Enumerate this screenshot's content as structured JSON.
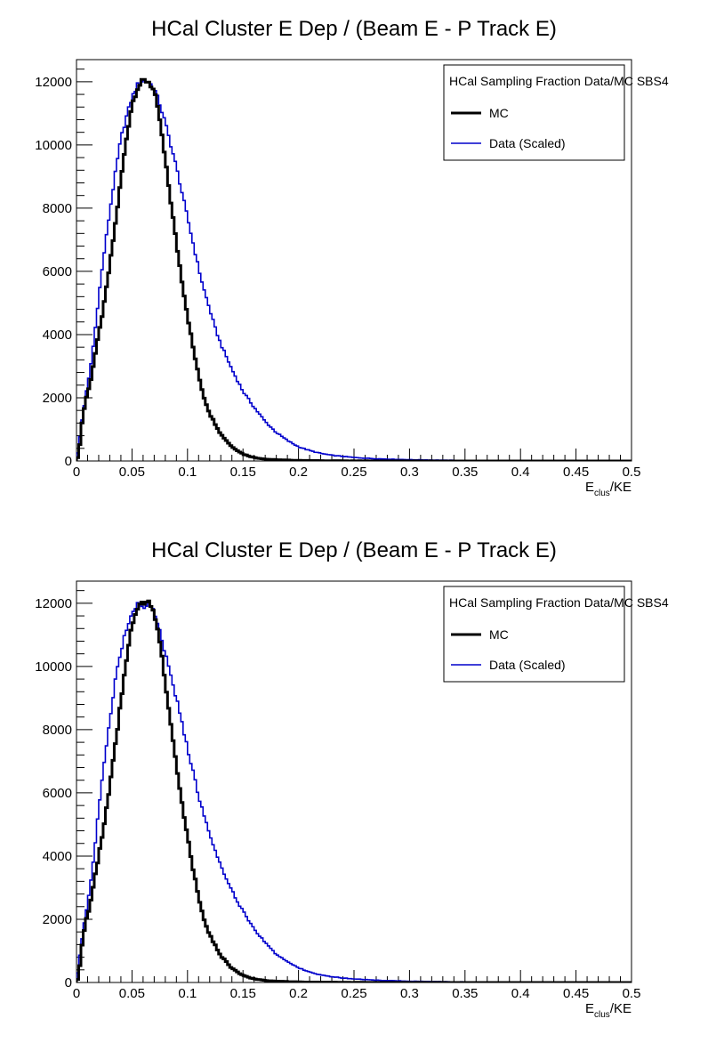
{
  "chart_data": [
    {
      "type": "line",
      "title": "HCal Cluster E Dep / (Beam E - P Track E)",
      "xlabel_main": "E",
      "xlabel_sub": "clus",
      "xlabel_tail": "/KE",
      "ylabel": "",
      "xlim": [
        0,
        0.5
      ],
      "ylim": [
        0,
        12700
      ],
      "x_ticks": [
        "0",
        "0.05",
        "0.1",
        "0.15",
        "0.2",
        "0.25",
        "0.3",
        "0.35",
        "0.4",
        "0.45",
        "0.5"
      ],
      "y_ticks": [
        "0",
        "2000",
        "4000",
        "6000",
        "8000",
        "10000",
        "12000"
      ],
      "grid": false,
      "legend": {
        "header": "HCal Sampling Fraction Data/MC SBS4",
        "placement": "top-right",
        "entries": [
          "MC",
          "Data (Scaled)"
        ]
      },
      "series": [
        {
          "name": "MC",
          "color": "#000000",
          "width": 3,
          "x": [
            0.002,
            0.005,
            0.008,
            0.012,
            0.016,
            0.02,
            0.025,
            0.03,
            0.035,
            0.04,
            0.045,
            0.05,
            0.055,
            0.06,
            0.065,
            0.07,
            0.075,
            0.08,
            0.085,
            0.09,
            0.095,
            0.1,
            0.105,
            0.11,
            0.115,
            0.12,
            0.13,
            0.14,
            0.15,
            0.16,
            0.17,
            0.18,
            0.2,
            0.22,
            0.25,
            0.3,
            0.35,
            0.4,
            0.45,
            0.5
          ],
          "y": [
            200,
            1200,
            1900,
            2400,
            3200,
            4000,
            5000,
            6200,
            7500,
            8900,
            10200,
            11300,
            11800,
            12050,
            12000,
            11700,
            10800,
            9500,
            8200,
            6900,
            5700,
            4600,
            3600,
            2700,
            2000,
            1500,
            850,
            450,
            220,
            110,
            60,
            40,
            20,
            10,
            5,
            2,
            1,
            0,
            0,
            0
          ]
        },
        {
          "name": "Data (Scaled)",
          "color": "#0000cc",
          "width": 1.6,
          "x": [
            0.002,
            0.005,
            0.008,
            0.012,
            0.016,
            0.02,
            0.025,
            0.03,
            0.035,
            0.04,
            0.045,
            0.05,
            0.055,
            0.06,
            0.065,
            0.07,
            0.075,
            0.08,
            0.085,
            0.09,
            0.095,
            0.1,
            0.105,
            0.11,
            0.115,
            0.12,
            0.125,
            0.13,
            0.14,
            0.15,
            0.16,
            0.17,
            0.18,
            0.19,
            0.2,
            0.21,
            0.22,
            0.23,
            0.25,
            0.27,
            0.3,
            0.33,
            0.36,
            0.4,
            0.45,
            0.5
          ],
          "y": [
            500,
            1300,
            2000,
            2800,
            3900,
            5200,
            6600,
            7900,
            9100,
            10200,
            10900,
            11500,
            11900,
            12050,
            12000,
            11800,
            11300,
            10700,
            10000,
            9300,
            8500,
            7700,
            6900,
            6100,
            5400,
            4800,
            4200,
            3700,
            2900,
            2200,
            1700,
            1250,
            900,
            650,
            450,
            330,
            240,
            180,
            110,
            70,
            40,
            25,
            15,
            10,
            5,
            0
          ]
        }
      ]
    },
    {
      "type": "line",
      "title": "HCal Cluster E Dep / (Beam E - P Track E)",
      "xlabel_main": "E",
      "xlabel_sub": "clus",
      "xlabel_tail": "/KE",
      "ylabel": "",
      "xlim": [
        0,
        0.5
      ],
      "ylim": [
        0,
        12700
      ],
      "x_ticks": [
        "0",
        "0.05",
        "0.1",
        "0.15",
        "0.2",
        "0.25",
        "0.3",
        "0.35",
        "0.4",
        "0.45",
        "0.5"
      ],
      "y_ticks": [
        "0",
        "2000",
        "4000",
        "6000",
        "8000",
        "10000",
        "12000"
      ],
      "grid": false,
      "legend": {
        "header": "HCal Sampling Fraction Data/MC SBS4",
        "placement": "top-right",
        "entries": [
          "MC",
          "Data (Scaled)"
        ]
      },
      "series": [
        {
          "name": "MC",
          "color": "#000000",
          "width": 3,
          "x": [
            0.002,
            0.005,
            0.008,
            0.012,
            0.016,
            0.02,
            0.025,
            0.03,
            0.035,
            0.04,
            0.045,
            0.05,
            0.055,
            0.06,
            0.065,
            0.07,
            0.075,
            0.08,
            0.085,
            0.09,
            0.095,
            0.1,
            0.105,
            0.11,
            0.115,
            0.12,
            0.13,
            0.14,
            0.15,
            0.16,
            0.17,
            0.18,
            0.2,
            0.22,
            0.25,
            0.3,
            0.35,
            0.4,
            0.45,
            0.5
          ],
          "y": [
            200,
            1200,
            1900,
            2400,
            3200,
            4000,
            5000,
            6200,
            7500,
            8900,
            10200,
            11300,
            11800,
            12050,
            12000,
            11700,
            10800,
            9500,
            8200,
            6900,
            5700,
            4600,
            3600,
            2700,
            2000,
            1500,
            850,
            450,
            220,
            110,
            60,
            40,
            20,
            10,
            5,
            2,
            1,
            0,
            0,
            0
          ]
        },
        {
          "name": "Data (Scaled)",
          "color": "#0000cc",
          "width": 1.6,
          "x": [
            0.002,
            0.005,
            0.008,
            0.012,
            0.016,
            0.02,
            0.025,
            0.03,
            0.035,
            0.04,
            0.045,
            0.05,
            0.055,
            0.06,
            0.065,
            0.07,
            0.075,
            0.08,
            0.085,
            0.09,
            0.095,
            0.1,
            0.105,
            0.11,
            0.115,
            0.12,
            0.125,
            0.13,
            0.14,
            0.15,
            0.16,
            0.17,
            0.18,
            0.19,
            0.2,
            0.21,
            0.22,
            0.23,
            0.25,
            0.27,
            0.3,
            0.33,
            0.36,
            0.4,
            0.45,
            0.5
          ],
          "y": [
            600,
            1400,
            2100,
            3000,
            4100,
            5500,
            7000,
            8300,
            9600,
            10500,
            11200,
            11700,
            12000,
            11800,
            12050,
            11700,
            11100,
            10400,
            9700,
            9000,
            8200,
            7400,
            6700,
            5900,
            5300,
            4700,
            4200,
            3700,
            2900,
            2250,
            1700,
            1250,
            900,
            650,
            460,
            330,
            240,
            180,
            110,
            70,
            40,
            25,
            15,
            10,
            5,
            0
          ]
        }
      ]
    }
  ]
}
